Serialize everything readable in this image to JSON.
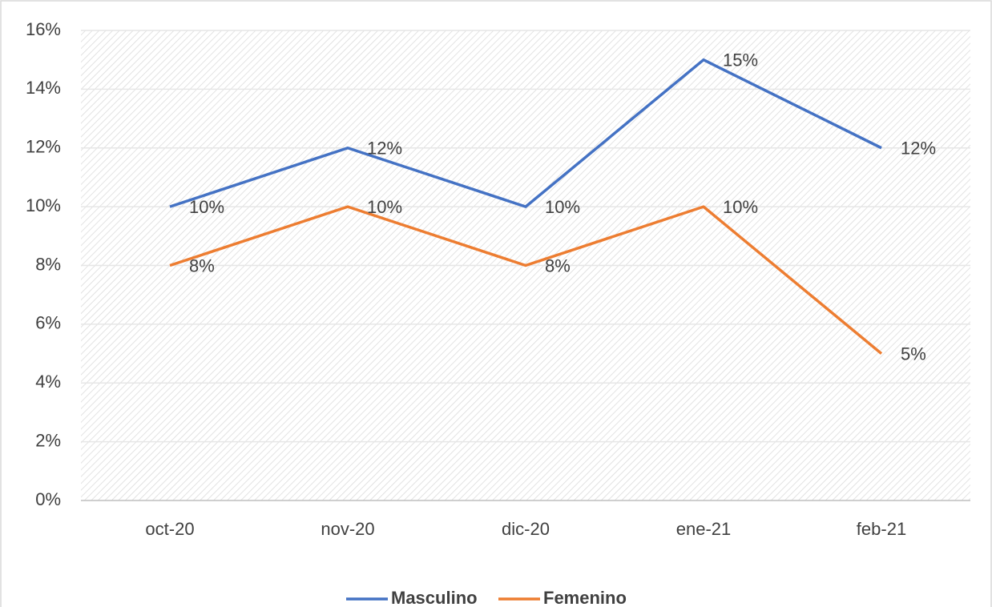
{
  "chart_data": {
    "type": "line",
    "categories": [
      "oct-20",
      "nov-20",
      "dic-20",
      "ene-21",
      "feb-21"
    ],
    "series": [
      {
        "name": "Masculino",
        "color": "#4472c4",
        "values": [
          10,
          12,
          10,
          15,
          12
        ],
        "value_labels": [
          "10%",
          "12%",
          "10%",
          "15%",
          "12%"
        ]
      },
      {
        "name": "Femenino",
        "color": "#ed7d31",
        "values": [
          8,
          10,
          8,
          10,
          5
        ],
        "value_labels": [
          "8%",
          "10%",
          "8%",
          "10%",
          "5%"
        ]
      }
    ],
    "ylim": [
      0,
      16
    ],
    "yticks": [
      {
        "value": 0,
        "label": "0%"
      },
      {
        "value": 2,
        "label": "2%"
      },
      {
        "value": 4,
        "label": "4%"
      },
      {
        "value": 6,
        "label": "6%"
      },
      {
        "value": 8,
        "label": "8%"
      },
      {
        "value": 10,
        "label": "10%"
      },
      {
        "value": 12,
        "label": "12%"
      },
      {
        "value": 14,
        "label": "14%"
      },
      {
        "value": 16,
        "label": "16%"
      }
    ],
    "grid": true,
    "legend": "bottom"
  }
}
